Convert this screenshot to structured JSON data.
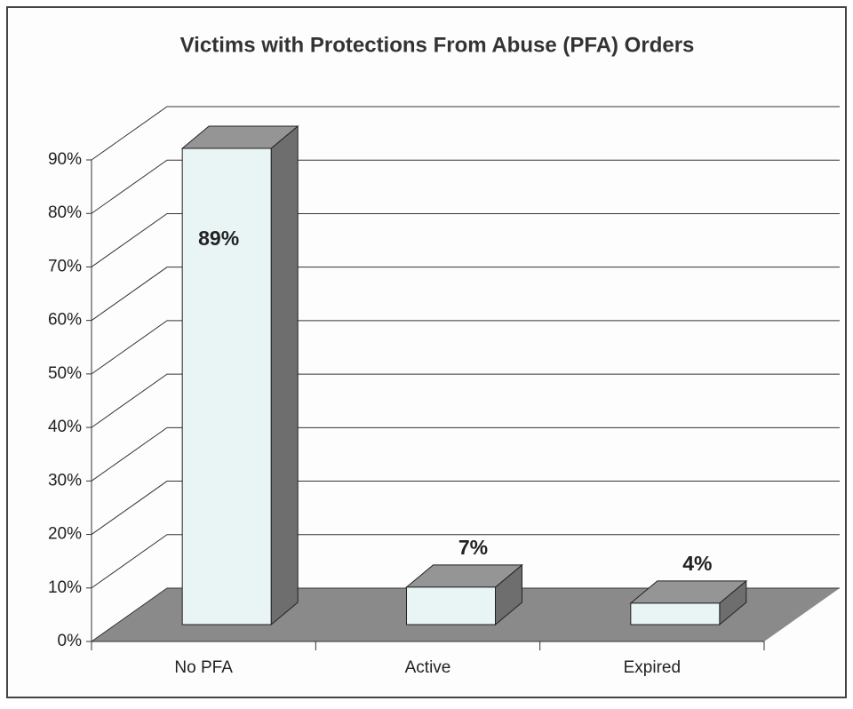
{
  "chart_data": {
    "type": "bar3d",
    "title": "Victims with Protections From Abuse (PFA) Orders",
    "categories": [
      "No PFA",
      "Active",
      "Expired"
    ],
    "values": [
      89,
      7,
      4
    ],
    "value_labels": [
      "89%",
      "7%",
      "4%"
    ],
    "color": "#e9f5f5",
    "ylim": [
      0,
      90
    ],
    "yticks": [
      {
        "value": 0,
        "label": "0%"
      },
      {
        "value": 10,
        "label": "10%"
      },
      {
        "value": 20,
        "label": "20%"
      },
      {
        "value": 30,
        "label": "30%"
      },
      {
        "value": 40,
        "label": "40%"
      },
      {
        "value": 50,
        "label": "50%"
      },
      {
        "value": 60,
        "label": "60%"
      },
      {
        "value": 70,
        "label": "70%"
      },
      {
        "value": 80,
        "label": "80%"
      },
      {
        "value": 90,
        "label": "90%"
      }
    ],
    "grid": true
  }
}
